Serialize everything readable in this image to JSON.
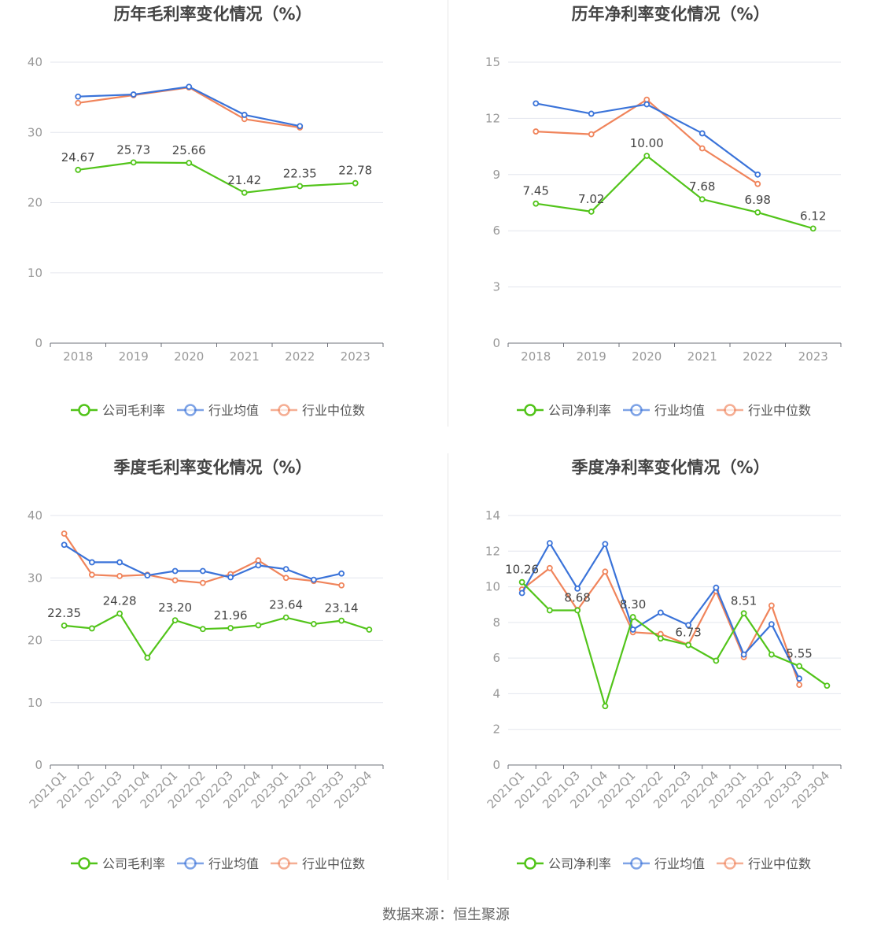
{
  "source_text": "数据来源：恒生聚源",
  "chart_data": [
    {
      "type": "line",
      "title": "历年毛利率变化情况（%）",
      "categories": [
        "2018",
        "2019",
        "2020",
        "2021",
        "2022",
        "2023"
      ],
      "ylim": [
        0,
        40
      ],
      "yticks": [
        0,
        10,
        20,
        30,
        40
      ],
      "grid": true,
      "legend_placement": "bottom",
      "series": [
        {
          "name": "公司毛利率",
          "color": "#52c41a",
          "values": [
            24.67,
            25.73,
            25.66,
            21.42,
            22.35,
            22.78
          ],
          "labels": [
            "24.67",
            "25.73",
            "25.66",
            "21.42",
            "22.35",
            "22.78"
          ]
        },
        {
          "name": "行业均值",
          "color": "#3a73d9",
          "values": [
            35.1,
            35.4,
            36.5,
            32.5,
            30.9,
            null
          ]
        },
        {
          "name": "行业中位数",
          "color": "#f0845b",
          "values": [
            34.2,
            35.3,
            36.4,
            31.9,
            30.7,
            null
          ]
        }
      ]
    },
    {
      "type": "line",
      "title": "历年净利率变化情况（%）",
      "categories": [
        "2018",
        "2019",
        "2020",
        "2021",
        "2022",
        "2023"
      ],
      "ylim": [
        0,
        15
      ],
      "yticks": [
        0,
        3,
        6,
        9,
        12,
        15
      ],
      "grid": true,
      "legend_placement": "bottom",
      "series": [
        {
          "name": "公司净利率",
          "color": "#52c41a",
          "values": [
            7.45,
            7.02,
            10.0,
            7.68,
            6.98,
            6.12
          ],
          "labels": [
            "7.45",
            "7.02",
            "10.00",
            "7.68",
            "6.98",
            "6.12"
          ]
        },
        {
          "name": "行业均值",
          "color": "#3a73d9",
          "values": [
            12.8,
            12.25,
            12.75,
            11.2,
            9.0,
            null
          ]
        },
        {
          "name": "行业中位数",
          "color": "#f0845b",
          "values": [
            11.3,
            11.15,
            13.0,
            10.4,
            8.5,
            null
          ]
        }
      ]
    },
    {
      "type": "line",
      "title": "季度毛利率变化情况（%）",
      "categories": [
        "2021Q1",
        "2021Q2",
        "2021Q3",
        "2021Q4",
        "2022Q1",
        "2022Q2",
        "2022Q3",
        "2022Q4",
        "2023Q1",
        "2023Q2",
        "2023Q3",
        "2023Q4"
      ],
      "ylim": [
        0,
        40
      ],
      "yticks": [
        0,
        10,
        20,
        30,
        40
      ],
      "grid": true,
      "legend_placement": "bottom",
      "series": [
        {
          "name": "公司毛利率",
          "color": "#52c41a",
          "values": [
            22.35,
            21.9,
            24.28,
            17.2,
            23.2,
            21.8,
            21.96,
            22.4,
            23.64,
            22.6,
            23.14,
            21.7
          ],
          "labels": [
            "22.35",
            "",
            "24.28",
            "",
            "23.20",
            "",
            "21.96",
            "",
            "23.64",
            "",
            "23.14",
            ""
          ]
        },
        {
          "name": "行业均值",
          "color": "#3a73d9",
          "values": [
            35.3,
            32.5,
            32.5,
            30.4,
            31.1,
            31.1,
            30.1,
            32.0,
            31.4,
            29.7,
            30.7,
            null
          ]
        },
        {
          "name": "行业中位数",
          "color": "#f0845b",
          "values": [
            37.1,
            30.5,
            30.3,
            30.5,
            29.6,
            29.2,
            30.6,
            32.8,
            30.0,
            29.5,
            28.8,
            null
          ]
        }
      ]
    },
    {
      "type": "line",
      "title": "季度净利率变化情况（%）",
      "categories": [
        "2021Q1",
        "2021Q2",
        "2021Q3",
        "2021Q4",
        "2022Q1",
        "2022Q2",
        "2022Q3",
        "2022Q4",
        "2023Q1",
        "2023Q2",
        "2023Q3",
        "2023Q4"
      ],
      "ylim": [
        0,
        14
      ],
      "yticks": [
        0,
        2,
        4,
        6,
        8,
        10,
        12,
        14
      ],
      "grid": true,
      "legend_placement": "bottom",
      "series": [
        {
          "name": "公司净利率",
          "color": "#52c41a",
          "values": [
            10.26,
            8.68,
            8.68,
            3.3,
            8.3,
            7.1,
            6.73,
            5.85,
            8.51,
            6.2,
            5.55,
            4.45
          ],
          "labels": [
            "10.26",
            "",
            "8.68",
            "",
            "8.30",
            "",
            "6.73",
            "",
            "8.51",
            "",
            "5.55",
            ""
          ]
        },
        {
          "name": "行业均值",
          "color": "#3a73d9",
          "values": [
            9.65,
            12.45,
            9.9,
            12.4,
            7.6,
            8.55,
            7.85,
            9.95,
            6.2,
            7.9,
            4.85,
            null
          ]
        },
        {
          "name": "行业中位数",
          "color": "#f0845b",
          "values": [
            9.85,
            11.05,
            8.7,
            10.85,
            7.45,
            7.35,
            6.75,
            9.75,
            6.05,
            8.95,
            4.5,
            null
          ]
        }
      ]
    }
  ]
}
